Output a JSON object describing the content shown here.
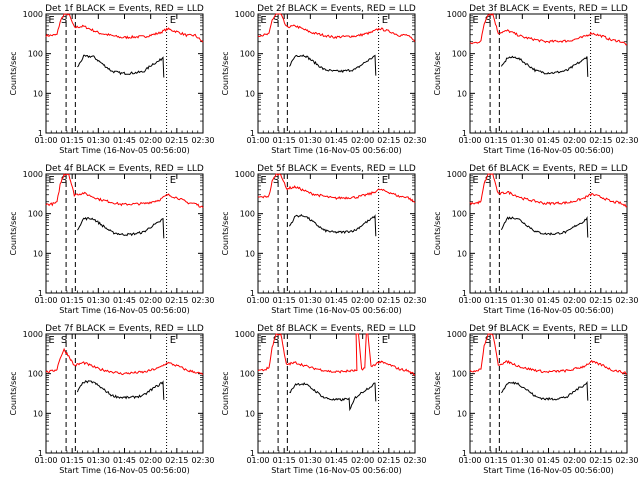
{
  "colors": {
    "events": "#000000",
    "lld": "#ff0000",
    "axes": "#000000",
    "background": "#ffffff"
  },
  "chart_data": [
    {
      "type": "line",
      "title": "Det 1f BLACK = Events, RED = LLD",
      "xlabel": "Start Time (16-Nov-05 00:56:00)",
      "ylabel": "Counts/sec",
      "ylog": true,
      "yticks": [
        "1",
        "10",
        "100",
        "1000"
      ],
      "xtick_labels": [
        "01:00",
        "01:15",
        "01:30",
        "01:45",
        "02:00",
        "02:15",
        "02:30"
      ],
      "markers": [
        "E",
        "S",
        "E"
      ],
      "series": [
        {
          "x": [
            0.0,
            4.0,
            7.0,
            9.0,
            11.5,
            14.5,
            18.0,
            24.0,
            34.0,
            48.0,
            63.0,
            72.0,
            77.5,
            85.0,
            90.0,
            95.0,
            100.0
          ],
          "y": [
            285,
            290,
            300,
            640,
            1000,
            1000,
            460,
            490,
            330,
            255,
            270,
            330,
            420,
            340,
            285,
            290,
            195
          ]
        },
        {
          "x": [
            20.0,
            24.0,
            30.0,
            36.0,
            42.0,
            48.0,
            54.0,
            62.0,
            68.0,
            72.0,
            74.5,
            75.0
          ],
          "y": [
            45,
            85,
            85,
            55,
            36,
            32,
            32,
            35,
            55,
            65,
            80,
            25
          ]
        }
      ]
    },
    {
      "type": "line",
      "title": "Det 2f BLACK = Events, RED = LLD",
      "xlabel": "Start Time (16-Nov-05 00:56:00)",
      "ylabel": "Counts/sec",
      "ylog": true,
      "yticks": [
        "1",
        "10",
        "100",
        "1000"
      ],
      "xtick_labels": [
        "01:00",
        "01:15",
        "01:30",
        "01:45",
        "02:00",
        "02:15",
        "02:30"
      ],
      "markers": [
        "E",
        "S",
        "E"
      ],
      "series": [
        {
          "x": [
            0.0,
            4.0,
            7.0,
            9.0,
            11.5,
            14.5,
            18.0,
            24.0,
            34.0,
            48.0,
            63.0,
            72.0,
            77.5,
            85.0,
            90.0,
            95.0,
            100.0
          ],
          "y": [
            290,
            295,
            310,
            700,
            1000,
            1000,
            470,
            500,
            340,
            260,
            280,
            340,
            430,
            350,
            290,
            295,
            200
          ]
        },
        {
          "x": [
            20.0,
            24.0,
            30.0,
            36.0,
            42.0,
            48.0,
            54.0,
            62.0,
            68.0,
            72.0,
            74.5,
            75.0
          ],
          "y": [
            50,
            90,
            90,
            60,
            40,
            36,
            36,
            40,
            60,
            75,
            90,
            28
          ]
        }
      ]
    },
    {
      "type": "line",
      "title": "Det 3f BLACK = Events, RED = LLD",
      "xlabel": "Start Time (16-Nov-05 00:56:00)",
      "ylabel": "Counts/sec",
      "ylog": true,
      "yticks": [
        "1",
        "10",
        "100",
        "1000"
      ],
      "xtick_labels": [
        "01:00",
        "01:15",
        "01:30",
        "01:45",
        "02:00",
        "02:15",
        "02:30"
      ],
      "markers": [
        "E",
        "S",
        "E"
      ],
      "series": [
        {
          "x": [
            0.0,
            4.0,
            7.0,
            9.0,
            11.5,
            14.5,
            18.0,
            24.0,
            34.0,
            48.0,
            63.0,
            72.0,
            77.5,
            85.0,
            90.0,
            95.0,
            100.0
          ],
          "y": [
            180,
            190,
            210,
            560,
            1000,
            1000,
            330,
            380,
            260,
            200,
            210,
            260,
            330,
            270,
            220,
            210,
            170
          ]
        },
        {
          "x": [
            20.0,
            24.0,
            30.0,
            36.0,
            42.0,
            48.0,
            54.0,
            62.0,
            68.0,
            72.0,
            74.5,
            75.0
          ],
          "y": [
            45,
            80,
            80,
            55,
            37,
            33,
            33,
            38,
            55,
            68,
            85,
            26
          ]
        }
      ]
    },
    {
      "type": "line",
      "title": "Det 4f BLACK = Events, RED = LLD",
      "xlabel": "Start Time (16-Nov-05 00:56:00)",
      "ylabel": "Counts/sec",
      "ylog": true,
      "yticks": [
        "1",
        "10",
        "100",
        "1000"
      ],
      "xtick_labels": [
        "01:00",
        "01:15",
        "01:30",
        "01:45",
        "02:00",
        "02:15",
        "02:30"
      ],
      "markers": [
        "E",
        "S",
        "E"
      ],
      "series": [
        {
          "x": [
            0.0,
            4.0,
            7.0,
            9.0,
            11.5,
            14.5,
            18.0,
            24.0,
            34.0,
            48.0,
            63.0,
            72.0,
            77.5,
            85.0,
            90.0,
            95.0,
            100.0
          ],
          "y": [
            170,
            175,
            190,
            540,
            1000,
            1000,
            300,
            330,
            230,
            170,
            180,
            220,
            300,
            240,
            190,
            180,
            140
          ]
        },
        {
          "x": [
            20.0,
            24.0,
            30.0,
            36.0,
            42.0,
            48.0,
            54.0,
            62.0,
            68.0,
            72.0,
            74.5,
            75.0
          ],
          "y": [
            40,
            75,
            75,
            50,
            34,
            30,
            30,
            34,
            50,
            60,
            75,
            24
          ]
        }
      ]
    },
    {
      "type": "line",
      "title": "Det 5f BLACK = Events, RED = LLD",
      "xlabel": "Start Time (16-Nov-05 00:56:00)",
      "ylabel": "Counts/sec",
      "ylog": true,
      "yticks": [
        "1",
        "10",
        "100",
        "1000"
      ],
      "xtick_labels": [
        "01:00",
        "01:15",
        "01:30",
        "01:45",
        "02:00",
        "02:15",
        "02:30"
      ],
      "markers": [
        "E",
        "S",
        "E"
      ],
      "series": [
        {
          "x": [
            0.0,
            4.0,
            7.0,
            9.0,
            11.5,
            14.5,
            18.0,
            24.0,
            34.0,
            48.0,
            63.0,
            72.0,
            77.5,
            85.0,
            90.0,
            95.0,
            100.0
          ],
          "y": [
            260,
            265,
            280,
            640,
            1000,
            1000,
            430,
            470,
            320,
            245,
            260,
            320,
            410,
            330,
            270,
            265,
            190
          ]
        },
        {
          "x": [
            20.0,
            24.0,
            30.0,
            36.0,
            42.0,
            48.0,
            54.0,
            62.0,
            68.0,
            72.0,
            74.5,
            75.0
          ],
          "y": [
            48,
            88,
            88,
            58,
            38,
            34,
            34,
            38,
            58,
            72,
            88,
            27
          ]
        }
      ]
    },
    {
      "type": "line",
      "title": "Det 6f BLACK = Events, RED = LLD",
      "xlabel": "Start Time (16-Nov-05 00:56:00)",
      "ylabel": "Counts/sec",
      "ylog": true,
      "yticks": [
        "1",
        "10",
        "100",
        "1000"
      ],
      "xtick_labels": [
        "01:00",
        "01:15",
        "01:30",
        "01:45",
        "02:00",
        "02:15",
        "02:30"
      ],
      "markers": [
        "E",
        "S",
        "E"
      ],
      "series": [
        {
          "x": [
            0.0,
            4.0,
            7.0,
            9.0,
            11.5,
            14.5,
            18.0,
            24.0,
            34.0,
            48.0,
            63.0,
            72.0,
            77.5,
            85.0,
            90.0,
            95.0,
            100.0
          ],
          "y": [
            180,
            185,
            200,
            560,
            1000,
            1000,
            310,
            350,
            240,
            180,
            190,
            240,
            310,
            250,
            200,
            190,
            150
          ]
        },
        {
          "x": [
            20.0,
            24.0,
            30.0,
            36.0,
            42.0,
            48.0,
            54.0,
            62.0,
            68.0,
            72.0,
            74.5,
            75.0
          ],
          "y": [
            42,
            78,
            78,
            52,
            35,
            31,
            31,
            35,
            52,
            62,
            78,
            25
          ]
        }
      ]
    },
    {
      "type": "line",
      "title": "Det 7f BLACK = Events, RED = LLD",
      "xlabel": "Start Time (16-Nov-05 00:56:00)",
      "ylabel": "Counts/sec",
      "ylog": true,
      "yticks": [
        "1",
        "10",
        "100",
        "1000"
      ],
      "xtick_labels": [
        "01:00",
        "01:15",
        "01:30",
        "01:45",
        "02:00",
        "02:15",
        "02:30"
      ],
      "markers": [
        "E",
        "S",
        "E"
      ],
      "series": [
        {
          "x": [
            0.0,
            4.0,
            7.0,
            9.0,
            11.5,
            14.5,
            18.0,
            24.0,
            34.0,
            48.0,
            63.0,
            72.0,
            77.5,
            85.0,
            90.0,
            95.0,
            100.0
          ],
          "y": [
            110,
            115,
            130,
            250,
            400,
            280,
            160,
            190,
            130,
            100,
            110,
            140,
            190,
            150,
            120,
            110,
            95
          ]
        },
        {
          "x": [
            20.0,
            24.0,
            30.0,
            36.0,
            42.0,
            48.0,
            54.0,
            62.0,
            68.0,
            72.0,
            74.5,
            75.0
          ],
          "y": [
            35,
            62,
            62,
            42,
            28,
            25,
            25,
            28,
            42,
            52,
            62,
            22
          ]
        }
      ]
    },
    {
      "type": "line",
      "title": "Det 8f BLACK = Events, RED = LLD",
      "xlabel": "Start Time (16-Nov-05 00:56:00)",
      "ylabel": "Counts/sec",
      "ylog": true,
      "yticks": [
        "1",
        "10",
        "100",
        "1000"
      ],
      "xtick_labels": [
        "01:00",
        "01:15",
        "01:30",
        "01:45",
        "02:00",
        "02:15",
        "02:30"
      ],
      "markers": [
        "E",
        "S",
        "E"
      ],
      "series": [
        {
          "x": [
            0.0,
            4.0,
            7.0,
            9.0,
            11.5,
            14.5,
            18.0,
            24.0,
            34.0,
            48.0,
            63.0,
            62.5,
            64.0,
            66.0,
            68.0,
            69.0,
            70.0,
            72.0,
            77.5,
            85.0,
            90.0,
            95.0,
            100.0
          ],
          "y": [
            120,
            125,
            140,
            460,
            1000,
            1000,
            170,
            190,
            140,
            110,
            120,
            1000,
            1000,
            130,
            140,
            1000,
            1000,
            150,
            200,
            160,
            130,
            120,
            95
          ]
        },
        {
          "x": [
            20.0,
            24.0,
            30.0,
            36.0,
            42.0,
            48.0,
            54.0,
            58.0,
            58.5,
            62.0,
            68.0,
            72.0,
            74.5,
            75.0
          ],
          "y": [
            32,
            55,
            55,
            38,
            25,
            22,
            22,
            24,
            12,
            25,
            38,
            48,
            58,
            20
          ]
        }
      ]
    },
    {
      "type": "line",
      "title": "Det 9f BLACK = Events, RED = LLD",
      "xlabel": "Start Time (16-Nov-05 00:56:00)",
      "ylabel": "Counts/sec",
      "ylog": true,
      "yticks": [
        "1",
        "10",
        "100",
        "1000"
      ],
      "xtick_labels": [
        "01:00",
        "01:15",
        "01:30",
        "01:45",
        "02:00",
        "02:15",
        "02:30"
      ],
      "markers": [
        "E",
        "S",
        "E"
      ],
      "series": [
        {
          "x": [
            0.0,
            4.0,
            7.0,
            9.0,
            11.5,
            14.5,
            18.0,
            24.0,
            34.0,
            48.0,
            63.0,
            72.0,
            77.5,
            85.0,
            90.0,
            95.0,
            100.0
          ],
          "y": [
            115,
            120,
            135,
            480,
            1000,
            1000,
            170,
            200,
            140,
            110,
            120,
            150,
            200,
            160,
            125,
            115,
            100
          ]
        },
        {
          "x": [
            20.0,
            24.0,
            30.0,
            36.0,
            42.0,
            48.0,
            54.0,
            62.0,
            68.0,
            72.0,
            74.5,
            75.0
          ],
          "y": [
            33,
            58,
            58,
            40,
            26,
            23,
            23,
            26,
            40,
            50,
            60,
            21
          ]
        }
      ]
    }
  ]
}
